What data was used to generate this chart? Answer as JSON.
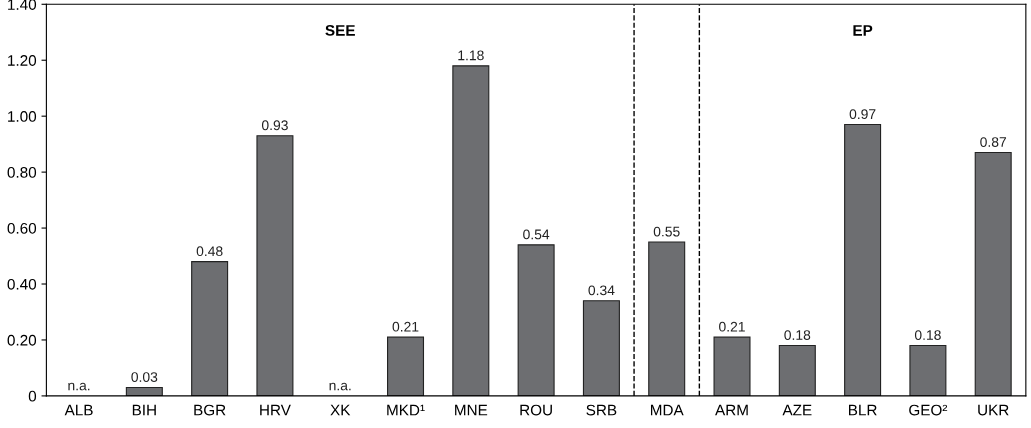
{
  "chart_data": {
    "type": "bar",
    "categories": [
      "ALB",
      "BIH",
      "BGR",
      "HRV",
      "XK",
      "MKD¹",
      "MNE",
      "ROU",
      "SRB",
      "MDA",
      "ARM",
      "AZE",
      "BLR",
      "GEO²",
      "UKR"
    ],
    "values": [
      null,
      0.03,
      0.48,
      0.93,
      null,
      0.21,
      1.18,
      0.54,
      0.34,
      0.55,
      0.21,
      0.18,
      0.97,
      0.18,
      0.87
    ],
    "value_labels": [
      "n.a.",
      "0.03",
      "0.48",
      "0.93",
      "n.a.",
      "0.21",
      "1.18",
      "0.54",
      "0.34",
      "0.55",
      "0.21",
      "0.18",
      "0.97",
      "0.18",
      "0.87"
    ],
    "color": "#6d6e71",
    "ylim": [
      0,
      1.4
    ],
    "yticks": [
      0,
      {
        "value": 0.2,
        "label": "0.20"
      },
      {
        "value": 0.4,
        "label": "0.40"
      },
      {
        "value": 0.6,
        "label": "0.60"
      },
      {
        "value": 0.8,
        "label": "0.80"
      },
      {
        "value": 1.0,
        "label": "1.00"
      },
      {
        "value": 1.2,
        "label": "1.20"
      },
      {
        "value": 1.4,
        "label": "1.40"
      }
    ],
    "annotations": [
      "SEE",
      "EP"
    ],
    "grid": false
  }
}
